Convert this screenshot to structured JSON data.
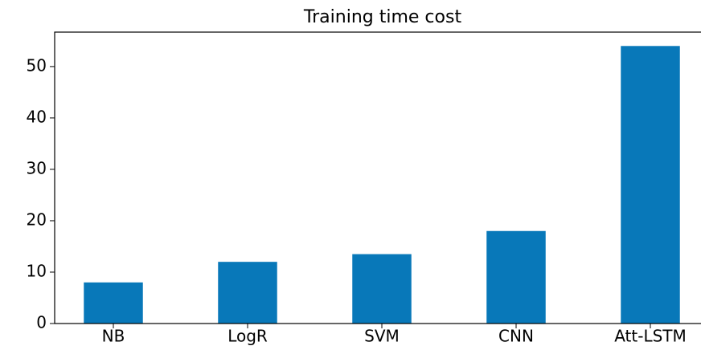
{
  "chart_data": {
    "type": "bar",
    "title": "Training time cost",
    "categories": [
      "NB",
      "LogR",
      "SVM",
      "CNN",
      "Att-LSTM"
    ],
    "values": [
      8,
      12,
      13.5,
      18,
      54
    ],
    "color": "#0878b9",
    "ylim": [
      0,
      56.7
    ],
    "yticks": [
      0,
      10,
      20,
      30,
      40,
      50
    ],
    "grid": false
  }
}
